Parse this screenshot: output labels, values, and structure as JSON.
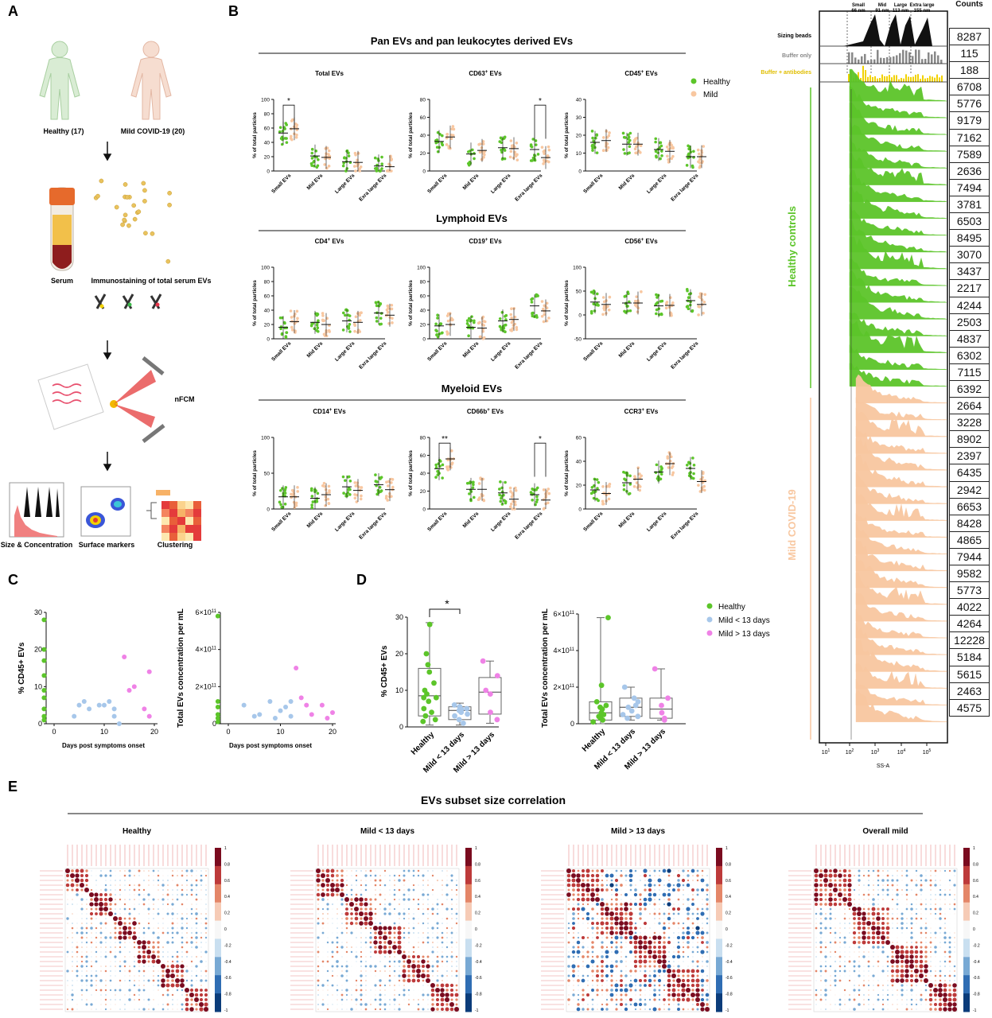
{
  "panels": {
    "a": "A",
    "b": "B",
    "c": "C",
    "d": "D",
    "e": "E"
  },
  "panel_a": {
    "healthy_label": "Healthy (17)",
    "mild_label": "Mild COVID-19 (20)",
    "serum_label": "Serum",
    "immuno_label": "Immunostaining of total serum EVs",
    "nfcm_label": "nFCM",
    "size_label": "Size & Concentration",
    "surface_label": "Surface markers",
    "clustering_label": "Clustering"
  },
  "panel_b": {
    "section_titles": [
      "Pan EVs and pan leukocytes derived EVs",
      "Lymphoid EVs",
      "Myeloid EVs"
    ],
    "ylabel": "% of total particles",
    "legend": [
      {
        "name": "Healthy",
        "color": "#5cc52a"
      },
      {
        "name": "Mild",
        "color": "#f8c7a0"
      }
    ],
    "categories": [
      "Small EVs",
      "Mid EVs",
      "Large EVs",
      "Exra large EVs"
    ],
    "charts": [
      {
        "title": "Total EVs",
        "sup": "",
        "ylim": [
          0,
          100
        ],
        "yticks": [
          0,
          20,
          40,
          60,
          80,
          100
        ],
        "healthy": [
          53,
          21,
          13,
          7
        ],
        "mild": [
          59,
          19,
          12,
          6
        ],
        "sig": [
          {
            "cat": 0,
            "label": "*"
          }
        ]
      },
      {
        "title": "CD63",
        "sup": "+",
        "suffix": " EVs",
        "ylim": [
          0,
          80
        ],
        "yticks": [
          0,
          20,
          40,
          60,
          80
        ],
        "healthy": [
          33,
          19,
          26,
          24
        ],
        "mild": [
          38,
          23,
          25,
          15
        ],
        "sig": [
          {
            "cat": 3,
            "label": "*"
          }
        ]
      },
      {
        "title": "CD45",
        "sup": "+",
        "suffix": " EVs",
        "ylim": [
          0,
          40
        ],
        "yticks": [
          0,
          10,
          20,
          30,
          40
        ],
        "healthy": [
          16,
          15,
          12,
          8
        ],
        "mild": [
          17,
          15,
          11,
          8
        ],
        "sig": []
      },
      {
        "title": "CD4",
        "sup": "+",
        "suffix": " EVs",
        "ylim": [
          0,
          100
        ],
        "yticks": [
          0,
          20,
          40,
          60,
          80,
          100
        ],
        "healthy": [
          16,
          23,
          25,
          36
        ],
        "mild": [
          24,
          20,
          23,
          33
        ],
        "sig": []
      },
      {
        "title": "CD19",
        "sup": "+",
        "suffix": " EVs",
        "ylim": [
          0,
          100
        ],
        "yticks": [
          0,
          20,
          40,
          60,
          80,
          100
        ],
        "healthy": [
          18,
          16,
          25,
          46
        ],
        "mild": [
          20,
          15,
          27,
          39
        ],
        "sig": []
      },
      {
        "title": "CD56",
        "sup": "+",
        "suffix": " EVs",
        "ylim": [
          -50,
          100
        ],
        "yticks": [
          -50,
          0,
          50,
          100
        ],
        "healthy": [
          27,
          25,
          19,
          30
        ],
        "mild": [
          22,
          25,
          20,
          22
        ],
        "sig": []
      },
      {
        "title": "CD14",
        "sup": "+",
        "suffix": " EVs",
        "ylim": [
          0,
          100
        ],
        "yticks": [
          0,
          50,
          100
        ],
        "healthy": [
          17,
          15,
          31,
          34
        ],
        "mild": [
          17,
          20,
          26,
          27
        ],
        "sig": []
      },
      {
        "title": "CD66b",
        "sup": "+",
        "suffix": " EVs",
        "ylim": [
          0,
          80
        ],
        "yticks": [
          0,
          20,
          40,
          60,
          80
        ],
        "healthy": [
          45,
          22,
          18,
          16
        ],
        "mild": [
          56,
          22,
          11,
          10
        ],
        "sig": [
          {
            "cat": 0,
            "label": "**"
          },
          {
            "cat": 3,
            "label": "*"
          }
        ]
      },
      {
        "title": "CCR3",
        "sup": "+",
        "suffix": " EVs",
        "ylim": [
          0,
          60
        ],
        "yticks": [
          0,
          20,
          40,
          60
        ],
        "healthy": [
          16,
          22,
          31,
          34
        ],
        "mild": [
          13,
          25,
          38,
          23
        ],
        "sig": []
      }
    ]
  },
  "panel_c": {
    "left": {
      "ylabel": "% CD45+ EVs",
      "xlabel": "Days post symptoms onset",
      "yticks": [
        0,
        10,
        20,
        30
      ],
      "xticks": [
        0,
        10,
        20
      ]
    },
    "right": {
      "ylabel": "Total EVs concentration per mL",
      "xlabel": "Days post symptoms onset",
      "yticks": [
        "0",
        "2×10",
        "4×10",
        "6×10"
      ],
      "xticks": [
        0,
        10,
        20
      ]
    }
  },
  "panel_d": {
    "left": {
      "ylabel": "% CD45+ EVs",
      "yticks": [
        0,
        10,
        20,
        30
      ],
      "sig": "*"
    },
    "right": {
      "ylabel": "Total EVs concentration per mL",
      "yticks": [
        "0",
        "2×10",
        "4×10",
        "6×10"
      ]
    },
    "groups": [
      "Healthy",
      "Mild < 13 days",
      "Mild > 13 days"
    ],
    "legend": [
      {
        "name": "Healthy",
        "color": "#5cc52a"
      },
      {
        "name": "Mild < 13 days",
        "color": "#a7c7ea"
      },
      {
        "name": "Mild > 13 days",
        "color": "#ef82e6"
      }
    ]
  },
  "panel_flow": {
    "size_labels": [
      "Small\n66 nm",
      "Mid\n91 nm",
      "Large\n113 nm",
      "Extra large\n155 nm"
    ],
    "row_labels": [
      "Sizing beads",
      "Buffer only",
      "Buffer + antibodies"
    ],
    "group_labels": [
      "Healthy controls",
      "Mild COVID-19"
    ],
    "xlabel": "SS-A",
    "xticks": [
      "10",
      "10",
      "10",
      "10",
      "10"
    ],
    "counts_title": "Counts",
    "counts": [
      "8287",
      "115",
      "188",
      "6708",
      "5776",
      "9179",
      "7162",
      "7589",
      "2636",
      "7494",
      "3781",
      "6503",
      "8495",
      "3070",
      "3437",
      "2217",
      "4244",
      "2503",
      "4837",
      "6302",
      "7115",
      "6392",
      "2664",
      "3228",
      "8902",
      "2397",
      "6435",
      "2942",
      "6653",
      "8428",
      "4865",
      "7944",
      "9582",
      "5773",
      "4022",
      "4264",
      "12228",
      "5184",
      "5615",
      "2463",
      "4575"
    ]
  },
  "panel_e": {
    "title": "EVs subset size correlation",
    "matrices": [
      "Healthy",
      "Mild < 13 days",
      "Mild > 13 days",
      "Overall mild"
    ],
    "scale": [
      "1",
      "0.8",
      "0.6",
      "0.4",
      "0.2",
      "0",
      "-0.2",
      "-0.4",
      "-0.6",
      "-0.8",
      "-1"
    ]
  },
  "colors": {
    "healthy": "#5cc52a",
    "mild": "#f8c7a0",
    "early": "#a7c7ea",
    "late": "#ef82e6",
    "buffer": "#888888",
    "antibody": "#f2d200"
  }
}
